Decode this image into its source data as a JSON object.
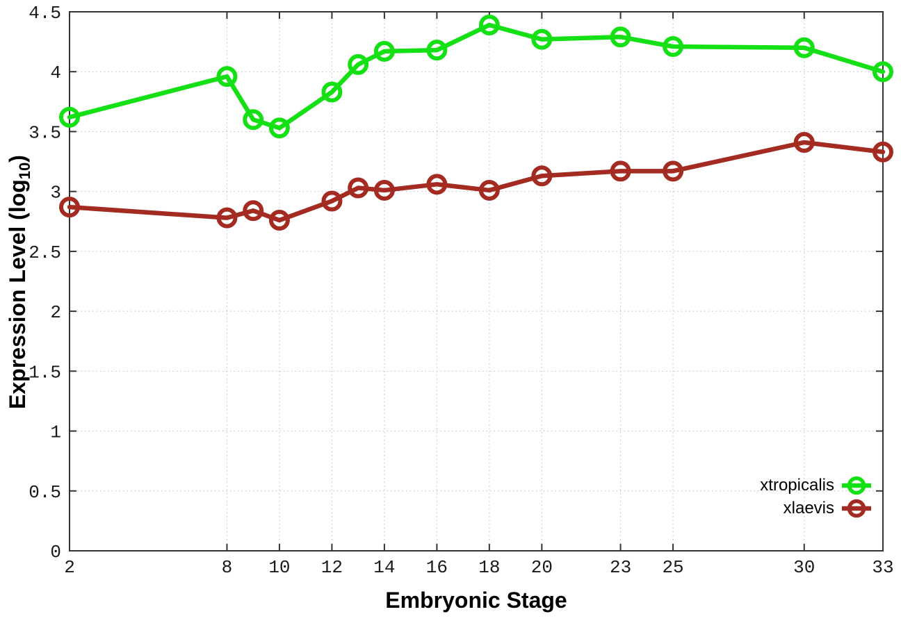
{
  "chart_data": {
    "type": "line",
    "title": "",
    "xlabel": "Embryonic Stage",
    "ylabel_prefix": "Expression Level (log",
    "ylabel_sub": "10",
    "ylabel_suffix": ")",
    "x": [
      2,
      8,
      9,
      10,
      12,
      13,
      14,
      16,
      18,
      20,
      23,
      25,
      30,
      33
    ],
    "series": [
      {
        "name": "xtropicalis",
        "color": "#15e015",
        "values": [
          3.62,
          3.96,
          3.6,
          3.53,
          3.83,
          4.06,
          4.17,
          4.18,
          4.39,
          4.27,
          4.29,
          4.21,
          4.2,
          4.0
        ]
      },
      {
        "name": "xlaevis",
        "color": "#a32b22",
        "values": [
          2.87,
          2.78,
          2.84,
          2.76,
          2.92,
          3.03,
          3.01,
          3.06,
          3.01,
          3.13,
          3.17,
          3.17,
          3.41,
          3.33
        ]
      }
    ],
    "xlim": [
      2,
      33
    ],
    "ylim": [
      0,
      4.5
    ],
    "xticks": {
      "values": [
        2,
        8,
        10,
        12,
        14,
        16,
        18,
        20,
        23,
        25,
        30,
        33
      ],
      "labels": [
        "2",
        "8",
        "10",
        "12",
        "14",
        "16",
        "18",
        "20",
        "23",
        "25",
        "30",
        "33"
      ]
    },
    "yticks": {
      "values": [
        0,
        0.5,
        1,
        1.5,
        2,
        2.5,
        3,
        3.5,
        4,
        4.5
      ],
      "labels": [
        "0",
        "0.5",
        "1",
        "1.5",
        "2",
        "2.5",
        "3",
        "3.5",
        "4",
        "4.5"
      ]
    },
    "grid": true,
    "legend_position": "bottom-right",
    "marker": "open-circle"
  },
  "style": {
    "background": "#ffffff",
    "border_color": "#333333",
    "grid_color": "#bbbbbb",
    "tick_text_color": "#1a1a1a",
    "line_width": 6.5,
    "marker_radius": 12,
    "marker_stroke": 6
  }
}
